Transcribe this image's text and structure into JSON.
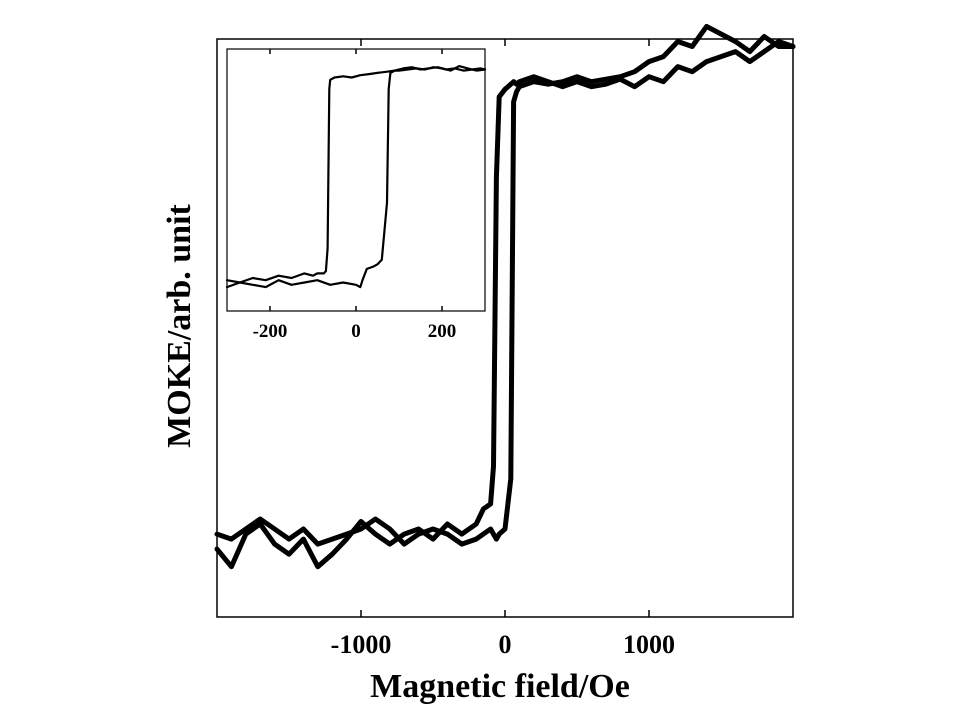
{
  "chart_data": [
    {
      "type": "line",
      "name": "main-plot",
      "title": "",
      "xlabel": "Magnetic field/Oe",
      "ylabel": "MOKE/arb. unit",
      "xlim": [
        -2000,
        2000
      ],
      "ylim": [
        -1.15,
        1.15
      ],
      "x_ticks": [
        -1000,
        0,
        1000
      ],
      "x_tick_labels": [
        "-1000",
        "0",
        "1000"
      ],
      "y_ticks": [],
      "grid": false,
      "legend": "none",
      "line_color": "#000000",
      "series": [
        {
          "x": [
            -2000,
            -1900,
            -1800,
            -1700,
            -1600,
            -1500,
            -1400,
            -1300,
            -1200,
            -1100,
            -1000,
            -900,
            -800,
            -700,
            -600,
            -500,
            -400,
            -300,
            -200,
            -150,
            -100,
            -80,
            -60,
            -40,
            0,
            40,
            60,
            80,
            100,
            200,
            300,
            400,
            500,
            600,
            700,
            800,
            900,
            1000,
            1100,
            1200,
            1300,
            1400,
            1500,
            1600,
            1700,
            1800,
            1900,
            2000
          ],
          "y": [
            -0.88,
            -0.95,
            -0.82,
            -0.78,
            -0.86,
            -0.9,
            -0.84,
            -0.95,
            -0.9,
            -0.84,
            -0.77,
            -0.82,
            -0.86,
            -0.82,
            -0.8,
            -0.84,
            -0.78,
            -0.82,
            -0.78,
            -0.72,
            -0.7,
            -0.55,
            0.6,
            0.92,
            0.95,
            0.97,
            0.98,
            0.97,
            0.98,
            1.0,
            0.98,
            0.96,
            0.98,
            0.96,
            0.97,
            0.99,
            0.96,
            1.0,
            0.98,
            1.04,
            1.02,
            1.06,
            1.08,
            1.1,
            1.06,
            1.1,
            1.14,
            1.12
          ]
        },
        {
          "x": [
            2000,
            1900,
            1800,
            1700,
            1600,
            1500,
            1400,
            1300,
            1200,
            1100,
            1000,
            900,
            800,
            700,
            600,
            500,
            400,
            300,
            200,
            150,
            100,
            80,
            60,
            40,
            0,
            -40,
            -60,
            -80,
            -100,
            -200,
            -300,
            -400,
            -500,
            -600,
            -700,
            -800,
            -900,
            -1000,
            -1100,
            -1200,
            -1300,
            -1400,
            -1500,
            -1600,
            -1700,
            -1800,
            -1900,
            -2000
          ],
          "y": [
            1.12,
            1.12,
            1.16,
            1.1,
            1.14,
            1.17,
            1.2,
            1.12,
            1.14,
            1.08,
            1.06,
            1.02,
            1.0,
            0.99,
            0.98,
            1.0,
            0.98,
            0.97,
            0.98,
            0.97,
            0.96,
            0.94,
            0.9,
            -0.6,
            -0.8,
            -0.82,
            -0.84,
            -0.82,
            -0.8,
            -0.84,
            -0.86,
            -0.82,
            -0.8,
            -0.82,
            -0.86,
            -0.8,
            -0.76,
            -0.8,
            -0.82,
            -0.84,
            -0.86,
            -0.8,
            -0.84,
            -0.8,
            -0.76,
            -0.8,
            -0.84,
            -0.82
          ]
        }
      ]
    },
    {
      "type": "line",
      "name": "inset-plot",
      "title": "",
      "xlabel": "",
      "ylabel": "",
      "xlim": [
        -300,
        300
      ],
      "ylim": [
        -1.15,
        1.15
      ],
      "x_ticks": [
        -200,
        0,
        200
      ],
      "x_tick_labels": [
        "-200",
        "0",
        "200"
      ],
      "y_ticks": [],
      "grid": false,
      "legend": "none",
      "line_color": "#000000",
      "series": [
        {
          "x": [
            -300,
            -270,
            -240,
            -210,
            -180,
            -150,
            -120,
            -100,
            -90,
            -75,
            -70,
            -66,
            -62,
            -60,
            -50,
            -30,
            -10,
            10,
            30,
            50,
            70,
            90,
            110,
            130,
            150,
            170,
            190,
            210,
            230,
            250,
            270,
            290,
            300
          ],
          "y": [
            -0.88,
            -0.9,
            -0.86,
            -0.88,
            -0.84,
            -0.86,
            -0.82,
            -0.84,
            -0.82,
            -0.82,
            -0.8,
            -0.6,
            0.8,
            0.88,
            0.9,
            0.91,
            0.9,
            0.92,
            0.93,
            0.94,
            0.95,
            0.96,
            0.98,
            0.99,
            0.97,
            0.98,
            0.99,
            0.97,
            0.98,
            0.96,
            0.97,
            0.98,
            0.97
          ]
        },
        {
          "x": [
            300,
            280,
            260,
            240,
            220,
            200,
            180,
            160,
            140,
            120,
            100,
            90,
            80,
            76,
            72,
            66,
            60,
            50,
            40,
            25,
            15,
            10,
            0,
            -30,
            -60,
            -90,
            -120,
            -150,
            -180,
            -210,
            -240,
            -270,
            -300
          ],
          "y": [
            0.97,
            0.96,
            0.98,
            1.0,
            0.96,
            0.98,
            0.99,
            0.97,
            0.98,
            0.97,
            0.96,
            0.96,
            0.94,
            0.8,
            -0.2,
            -0.45,
            -0.7,
            -0.74,
            -0.76,
            -0.78,
            -0.88,
            -0.94,
            -0.92,
            -0.9,
            -0.92,
            -0.88,
            -0.9,
            -0.92,
            -0.88,
            -0.94,
            -0.92,
            -0.9,
            -0.94
          ]
        }
      ]
    }
  ]
}
